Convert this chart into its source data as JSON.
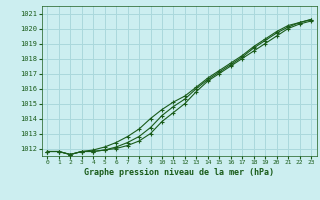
{
  "title": "Graphe pression niveau de la mer (hPa)",
  "bg_color": "#cceef0",
  "grid_color": "#aad8dc",
  "line_color": "#1a5c1a",
  "marker_color": "#1a5c1a",
  "xlim": [
    -0.5,
    23.5
  ],
  "ylim": [
    1011.5,
    1021.5
  ],
  "yticks": [
    1012,
    1013,
    1014,
    1015,
    1016,
    1017,
    1018,
    1019,
    1020,
    1021
  ],
  "xticks": [
    0,
    1,
    2,
    3,
    4,
    5,
    6,
    7,
    8,
    9,
    10,
    11,
    12,
    13,
    14,
    15,
    16,
    17,
    18,
    19,
    20,
    21,
    22,
    23
  ],
  "series1": [
    1011.8,
    1011.8,
    1011.6,
    1011.8,
    1011.8,
    1011.9,
    1012.0,
    1012.2,
    1012.5,
    1013.0,
    1013.8,
    1014.4,
    1015.0,
    1015.8,
    1016.5,
    1017.0,
    1017.5,
    1018.0,
    1018.5,
    1019.0,
    1019.5,
    1020.0,
    1020.3,
    1020.5
  ],
  "series2": [
    1011.8,
    1011.8,
    1011.6,
    1011.8,
    1011.8,
    1011.9,
    1012.1,
    1012.4,
    1012.8,
    1013.4,
    1014.2,
    1014.8,
    1015.3,
    1016.0,
    1016.6,
    1017.1,
    1017.6,
    1018.1,
    1018.7,
    1019.2,
    1019.7,
    1020.1,
    1020.4,
    1020.6
  ],
  "series3": [
    1011.8,
    1011.8,
    1011.6,
    1011.8,
    1011.9,
    1012.1,
    1012.4,
    1012.8,
    1013.3,
    1014.0,
    1014.6,
    1015.1,
    1015.5,
    1016.1,
    1016.7,
    1017.2,
    1017.7,
    1018.2,
    1018.8,
    1019.3,
    1019.8,
    1020.2,
    1020.4,
    1020.6
  ]
}
